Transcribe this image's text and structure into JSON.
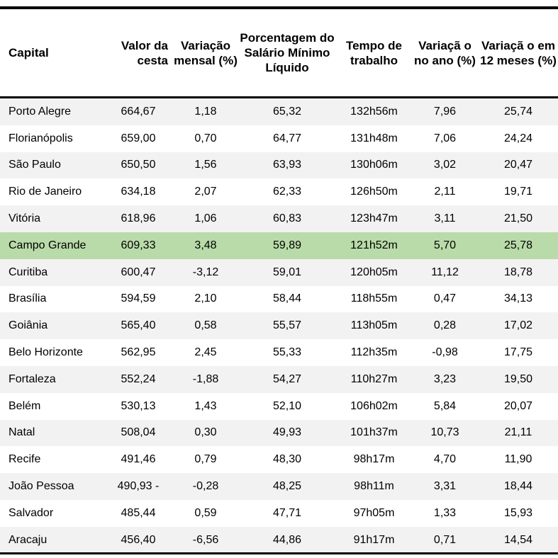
{
  "table": {
    "headers": [
      "Capital",
      "Valor da cesta",
      "Variação mensal (%)",
      "Porcentagem do Salário Mínimo Líquido",
      "Tempo de trabalho",
      "Variaçã o no ano (%)",
      "Variaçã o em 12 meses (%)"
    ],
    "highlight_row": "Campo Grande",
    "highlight_color": "#b9dba9",
    "rows": [
      [
        "Porto Alegre",
        "664,67",
        "1,18",
        "65,32",
        "132h56m",
        "7,96",
        "25,74"
      ],
      [
        "Florianópolis",
        "659,00",
        "0,70",
        "64,77",
        "131h48m",
        "7,06",
        "24,24"
      ],
      [
        "São Paulo",
        "650,50",
        "1,56",
        "63,93",
        "130h06m",
        "3,02",
        "20,47"
      ],
      [
        "Rio de Janeiro",
        "634,18",
        "2,07",
        "62,33",
        "126h50m",
        "2,11",
        "19,71"
      ],
      [
        "Vitória",
        "618,96",
        "1,06",
        "60,83",
        "123h47m",
        "3,11",
        "21,50"
      ],
      [
        "Campo Grande",
        "609,33",
        "3,48",
        "59,89",
        "121h52m",
        "5,70",
        "25,78"
      ],
      [
        "Curitiba",
        "600,47",
        "-3,12",
        "59,01",
        "120h05m",
        "11,12",
        "18,78"
      ],
      [
        "Brasília",
        "594,59",
        "2,10",
        "58,44",
        "118h55m",
        "0,47",
        "34,13"
      ],
      [
        "Goiânia",
        "565,40",
        "0,58",
        "55,57",
        "113h05m",
        "0,28",
        "17,02"
      ],
      [
        "Belo Horizonte",
        "562,95",
        "2,45",
        "55,33",
        "112h35m",
        "-0,98",
        "17,75"
      ],
      [
        "Fortaleza",
        "552,24",
        "-1,88",
        "54,27",
        "110h27m",
        "3,23",
        "19,50"
      ],
      [
        "Belém",
        "530,13",
        "1,43",
        "52,10",
        "106h02m",
        "5,84",
        "20,07"
      ],
      [
        "Natal",
        "508,04",
        "0,30",
        "49,93",
        "101h37m",
        "10,73",
        "21,11"
      ],
      [
        "Recife",
        "491,46",
        "0,79",
        "48,30",
        "98h17m",
        "4,70",
        "11,90"
      ],
      [
        "João Pessoa",
        "490,93 -",
        "-0,28",
        "48,25",
        "98h11m",
        "3,31",
        "18,44"
      ],
      [
        "Salvador",
        "485,44",
        "0,59",
        "47,71",
        "97h05m",
        "1,33",
        "15,93"
      ],
      [
        "Aracaju",
        "456,40",
        "-6,56",
        "44,86",
        "91h17m",
        "0,71",
        "14,54"
      ]
    ]
  }
}
